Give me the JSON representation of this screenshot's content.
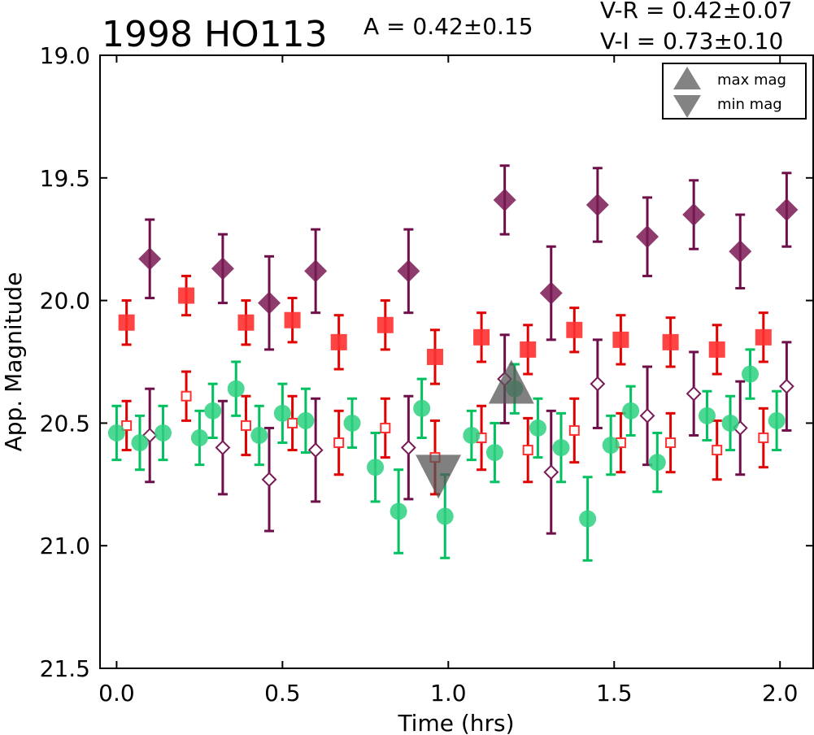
{
  "chart_data": {
    "type": "scatter",
    "title": "1998 HO113",
    "amplitude_text": "A  = 0.42±0.15",
    "color_index_text": [
      "V-R = 0.42±0.07",
      "V-I  = 0.73±0.10"
    ],
    "xlabel": "Time (hrs)",
    "ylabel": "App. Magnitude",
    "xlim": [
      -0.05,
      2.1
    ],
    "ylim": [
      21.5,
      19.0
    ],
    "y_inverted": true,
    "xticks": [
      "0.0",
      "0.5",
      "1.0",
      "1.5",
      "2.0"
    ],
    "yticks": [
      "19.0",
      "19.5",
      "20.0",
      "20.5",
      "21.0",
      "21.5"
    ],
    "grid": false,
    "legend_position": "top-right",
    "legend": [
      {
        "label": "max mag",
        "marker": "triangle-up"
      },
      {
        "label": "min mag",
        "marker": "triangle-down"
      }
    ],
    "series": [
      {
        "marker": "diamond-filled",
        "color": "#7a1a54",
        "ecolor": "#6e0f4a",
        "points": [
          {
            "x": 0.1,
            "y": 19.83,
            "err": 0.16
          },
          {
            "x": 0.32,
            "y": 19.87,
            "err": 0.14
          },
          {
            "x": 0.46,
            "y": 20.01,
            "err": 0.19
          },
          {
            "x": 0.6,
            "y": 19.88,
            "err": 0.17
          },
          {
            "x": 0.88,
            "y": 19.88,
            "err": 0.17
          },
          {
            "x": 1.17,
            "y": 19.59,
            "err": 0.14
          },
          {
            "x": 1.31,
            "y": 19.97,
            "err": 0.19
          },
          {
            "x": 1.45,
            "y": 19.61,
            "err": 0.15
          },
          {
            "x": 1.6,
            "y": 19.74,
            "err": 0.16
          },
          {
            "x": 1.74,
            "y": 19.65,
            "err": 0.14
          },
          {
            "x": 1.88,
            "y": 19.8,
            "err": 0.15
          },
          {
            "x": 2.02,
            "y": 19.63,
            "err": 0.15
          }
        ]
      },
      {
        "marker": "diamond-open",
        "color": "#7a1a54",
        "ecolor": "#6e0f4a",
        "points": [
          {
            "x": 0.1,
            "y": 20.55,
            "err": 0.19
          },
          {
            "x": 0.32,
            "y": 20.6,
            "err": 0.19
          },
          {
            "x": 0.46,
            "y": 20.73,
            "err": 0.21
          },
          {
            "x": 0.6,
            "y": 20.61,
            "err": 0.21
          },
          {
            "x": 0.88,
            "y": 20.6,
            "err": 0.21
          },
          {
            "x": 1.17,
            "y": 20.32,
            "err": 0.18
          },
          {
            "x": 1.31,
            "y": 20.7,
            "err": 0.25
          },
          {
            "x": 1.45,
            "y": 20.34,
            "err": 0.18
          },
          {
            "x": 1.6,
            "y": 20.47,
            "err": 0.2
          },
          {
            "x": 1.74,
            "y": 20.38,
            "err": 0.17
          },
          {
            "x": 1.88,
            "y": 20.52,
            "err": 0.19
          },
          {
            "x": 2.02,
            "y": 20.35,
            "err": 0.18
          }
        ]
      },
      {
        "marker": "square-filled",
        "color": "#ff3030",
        "ecolor": "#e00000",
        "points": [
          {
            "x": 0.03,
            "y": 20.09,
            "err": 0.09
          },
          {
            "x": 0.21,
            "y": 19.98,
            "err": 0.08
          },
          {
            "x": 0.39,
            "y": 20.09,
            "err": 0.09
          },
          {
            "x": 0.53,
            "y": 20.08,
            "err": 0.09
          },
          {
            "x": 0.67,
            "y": 20.17,
            "err": 0.11
          },
          {
            "x": 0.81,
            "y": 20.1,
            "err": 0.1
          },
          {
            "x": 0.96,
            "y": 20.23,
            "err": 0.11
          },
          {
            "x": 1.1,
            "y": 20.15,
            "err": 0.1
          },
          {
            "x": 1.24,
            "y": 20.2,
            "err": 0.1
          },
          {
            "x": 1.38,
            "y": 20.12,
            "err": 0.09
          },
          {
            "x": 1.52,
            "y": 20.16,
            "err": 0.1
          },
          {
            "x": 1.67,
            "y": 20.17,
            "err": 0.1
          },
          {
            "x": 1.81,
            "y": 20.2,
            "err": 0.1
          },
          {
            "x": 1.95,
            "y": 20.15,
            "err": 0.1
          }
        ]
      },
      {
        "marker": "square-open",
        "color": "#ff3030",
        "ecolor": "#e00000",
        "points": [
          {
            "x": 0.03,
            "y": 20.51,
            "err": 0.1
          },
          {
            "x": 0.21,
            "y": 20.39,
            "err": 0.1
          },
          {
            "x": 0.39,
            "y": 20.51,
            "err": 0.12
          },
          {
            "x": 0.53,
            "y": 20.5,
            "err": 0.11
          },
          {
            "x": 0.67,
            "y": 20.58,
            "err": 0.13
          },
          {
            "x": 0.81,
            "y": 20.52,
            "err": 0.12
          },
          {
            "x": 0.96,
            "y": 20.64,
            "err": 0.15
          },
          {
            "x": 1.1,
            "y": 20.56,
            "err": 0.13
          },
          {
            "x": 1.24,
            "y": 20.61,
            "err": 0.13
          },
          {
            "x": 1.38,
            "y": 20.53,
            "err": 0.13
          },
          {
            "x": 1.52,
            "y": 20.58,
            "err": 0.12
          },
          {
            "x": 1.67,
            "y": 20.58,
            "err": 0.12
          },
          {
            "x": 1.81,
            "y": 20.61,
            "err": 0.12
          },
          {
            "x": 1.95,
            "y": 20.56,
            "err": 0.12
          }
        ]
      },
      {
        "marker": "circle-filled",
        "color": "#2dd080",
        "ecolor": "#00c060",
        "points": [
          {
            "x": 0.0,
            "y": 20.54,
            "err": 0.11
          },
          {
            "x": 0.07,
            "y": 20.58,
            "err": 0.11
          },
          {
            "x": 0.14,
            "y": 20.54,
            "err": 0.11
          },
          {
            "x": 0.25,
            "y": 20.56,
            "err": 0.11
          },
          {
            "x": 0.29,
            "y": 20.45,
            "err": 0.11
          },
          {
            "x": 0.36,
            "y": 20.36,
            "err": 0.11
          },
          {
            "x": 0.43,
            "y": 20.55,
            "err": 0.12
          },
          {
            "x": 0.5,
            "y": 20.46,
            "err": 0.12
          },
          {
            "x": 0.57,
            "y": 20.49,
            "err": 0.13
          },
          {
            "x": 0.71,
            "y": 20.5,
            "err": 0.1
          },
          {
            "x": 0.78,
            "y": 20.68,
            "err": 0.14
          },
          {
            "x": 0.85,
            "y": 20.86,
            "err": 0.17
          },
          {
            "x": 0.92,
            "y": 20.44,
            "err": 0.12
          },
          {
            "x": 0.99,
            "y": 20.88,
            "err": 0.17
          },
          {
            "x": 1.07,
            "y": 20.55,
            "err": 0.1
          },
          {
            "x": 1.14,
            "y": 20.62,
            "err": 0.12
          },
          {
            "x": 1.2,
            "y": 20.36,
            "err": 0.1
          },
          {
            "x": 1.27,
            "y": 20.52,
            "err": 0.12
          },
          {
            "x": 1.34,
            "y": 20.6,
            "err": 0.14
          },
          {
            "x": 1.42,
            "y": 20.89,
            "err": 0.17
          },
          {
            "x": 1.49,
            "y": 20.59,
            "err": 0.12
          },
          {
            "x": 1.55,
            "y": 20.45,
            "err": 0.1
          },
          {
            "x": 1.63,
            "y": 20.66,
            "err": 0.12
          },
          {
            "x": 1.78,
            "y": 20.47,
            "err": 0.1
          },
          {
            "x": 1.85,
            "y": 20.5,
            "err": 0.11
          },
          {
            "x": 1.91,
            "y": 20.3,
            "err": 0.1
          },
          {
            "x": 1.99,
            "y": 20.49,
            "err": 0.12
          }
        ]
      }
    ],
    "markers": [
      {
        "label": "max mag",
        "marker": "triangle-up",
        "x": 1.19,
        "y": 20.36
      },
      {
        "label": "min mag",
        "marker": "triangle-down",
        "x": 0.97,
        "y": 20.69
      }
    ]
  }
}
